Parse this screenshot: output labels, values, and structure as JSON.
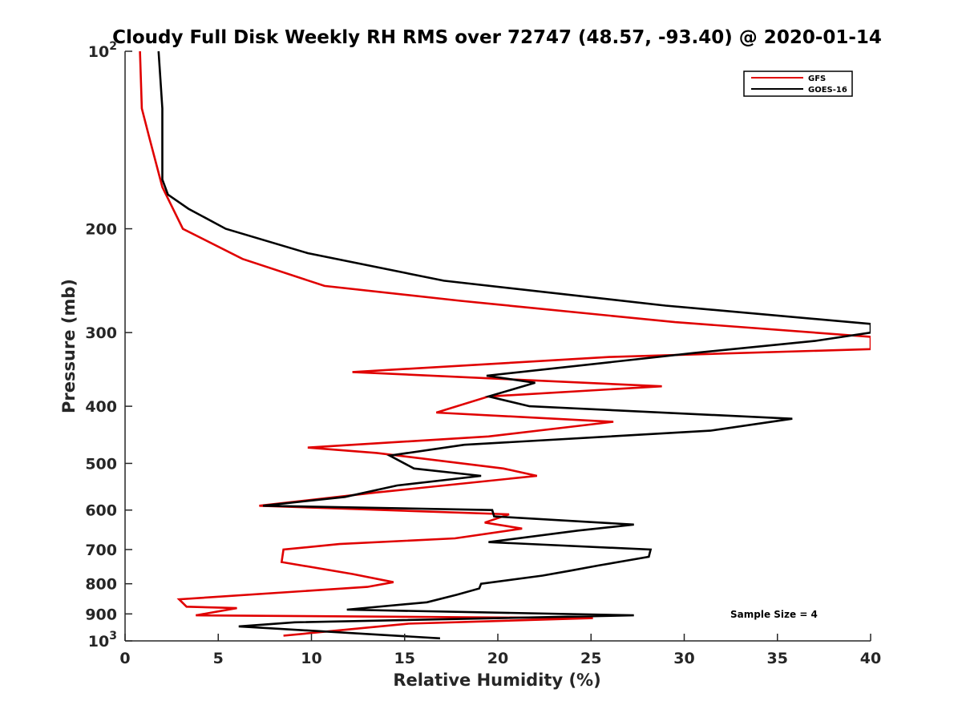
{
  "chart_data": {
    "type": "line",
    "title": "Cloudy Full Disk Weekly RH RMS over 72747 (48.57, -93.40) @ 2020-01-14",
    "xlabel": "Relative Humidity (%)",
    "ylabel": "Pressure (mb)",
    "xlim": [
      0,
      40
    ],
    "ylim": [
      100,
      1000
    ],
    "yscale": "log",
    "y_reversed": true,
    "x_ticks": [
      0,
      5,
      10,
      15,
      20,
      25,
      30,
      35,
      40
    ],
    "x_tick_labels": [
      "0",
      "5",
      "10",
      "15",
      "20",
      "25",
      "30",
      "35",
      "40"
    ],
    "y_ticks": [
      200,
      300,
      400,
      500,
      600,
      700,
      800,
      900
    ],
    "y_tick_labels": [
      "200",
      "300",
      "400",
      "500",
      "600",
      "700",
      "800",
      "900"
    ],
    "y_tick_top": {
      "base": "10",
      "exp": "2"
    },
    "y_tick_bottom": {
      "base": "10",
      "exp": "3"
    },
    "legend": {
      "location": "top-right"
    },
    "annotation": "Sample Size = 4",
    "series": [
      {
        "name": "GFS",
        "color": "#e00000",
        "points": [
          [
            0.8,
            100
          ],
          [
            0.9,
            125
          ],
          [
            1.3,
            140
          ],
          [
            2.0,
            170
          ],
          [
            3.1,
            200
          ],
          [
            6.3,
            225
          ],
          [
            10.7,
            250
          ],
          [
            18.0,
            265
          ],
          [
            29.5,
            288
          ],
          [
            40.0,
            305
          ],
          [
            40.0,
            320
          ],
          [
            26.0,
            330
          ],
          [
            12.2,
            350
          ],
          [
            28.8,
            370
          ],
          [
            19.5,
            385
          ],
          [
            16.7,
            410
          ],
          [
            26.2,
            425
          ],
          [
            19.5,
            450
          ],
          [
            9.8,
            470
          ],
          [
            13.5,
            480
          ],
          [
            20.3,
            510
          ],
          [
            22.1,
            525
          ],
          [
            13.5,
            560
          ],
          [
            7.2,
            590
          ],
          [
            20.6,
            610
          ],
          [
            19.3,
            630
          ],
          [
            21.3,
            645
          ],
          [
            17.7,
            670
          ],
          [
            11.5,
            685
          ],
          [
            8.5,
            700
          ],
          [
            8.4,
            735
          ],
          [
            12.2,
            770
          ],
          [
            14.4,
            795
          ],
          [
            13.0,
            810
          ],
          [
            2.9,
            850
          ],
          [
            3.3,
            875
          ],
          [
            6.0,
            880
          ],
          [
            3.8,
            905
          ],
          [
            25.1,
            915
          ],
          [
            15.2,
            935
          ],
          [
            8.5,
            980
          ]
        ]
      },
      {
        "name": "GOES-16",
        "color": "#000000",
        "points": [
          [
            1.8,
            100
          ],
          [
            2.0,
            125
          ],
          [
            2.0,
            165
          ],
          [
            2.3,
            175
          ],
          [
            3.4,
            185
          ],
          [
            5.4,
            200
          ],
          [
            9.8,
            220
          ],
          [
            17.1,
            245
          ],
          [
            29.0,
            270
          ],
          [
            40.0,
            290
          ],
          [
            40.0,
            300
          ],
          [
            37.0,
            310
          ],
          [
            30.5,
            325
          ],
          [
            19.4,
            355
          ],
          [
            22.0,
            365
          ],
          [
            19.5,
            385
          ],
          [
            21.7,
            400
          ],
          [
            35.8,
            420
          ],
          [
            31.4,
            440
          ],
          [
            18.2,
            465
          ],
          [
            14.2,
            485
          ],
          [
            15.5,
            510
          ],
          [
            19.1,
            525
          ],
          [
            14.6,
            545
          ],
          [
            11.8,
            570
          ],
          [
            7.4,
            590
          ],
          [
            19.7,
            600
          ],
          [
            19.8,
            615
          ],
          [
            27.3,
            635
          ],
          [
            24.3,
            650
          ],
          [
            19.5,
            680
          ],
          [
            28.2,
            700
          ],
          [
            28.1,
            720
          ],
          [
            25.4,
            745
          ],
          [
            23.9,
            760
          ],
          [
            22.4,
            775
          ],
          [
            19.1,
            800
          ],
          [
            19.0,
            815
          ],
          [
            17.8,
            835
          ],
          [
            16.2,
            860
          ],
          [
            11.9,
            885
          ],
          [
            27.3,
            905
          ],
          [
            9.1,
            930
          ],
          [
            6.1,
            945
          ],
          [
            16.9,
            990
          ]
        ]
      }
    ]
  }
}
